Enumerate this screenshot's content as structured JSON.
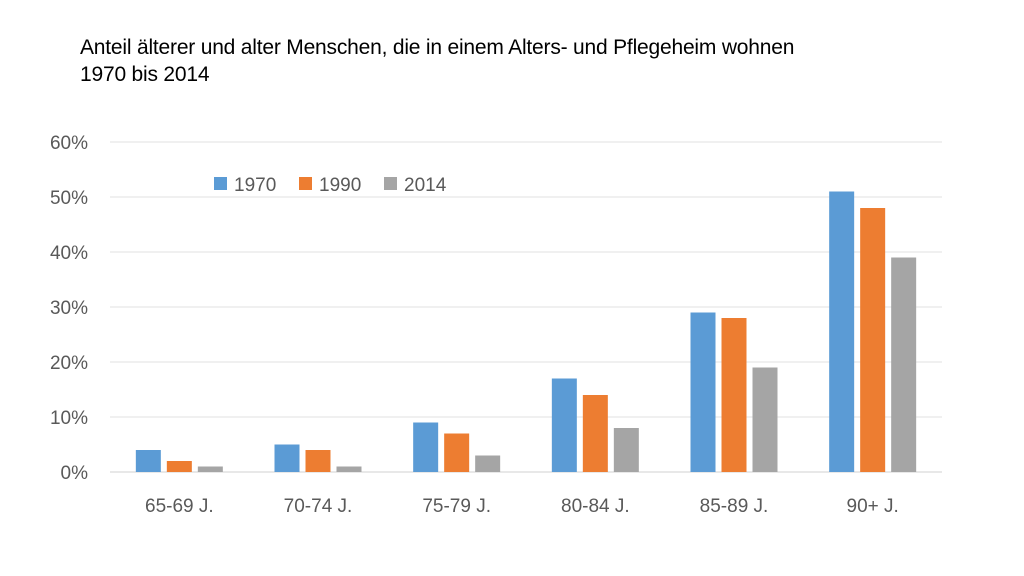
{
  "chart_data": {
    "type": "bar",
    "title_line1": "Anteil älterer und alter Menschen, die in einem Alters- und Pflegeheim wohnen",
    "title_line2": "1970 bis 2014",
    "categories": [
      "65-69 J.",
      "70-74 J.",
      "75-79 J.",
      "80-84 J.",
      "85-89 J.",
      "90+ J."
    ],
    "series": [
      {
        "name": "1970",
        "color": "#5B9BD5",
        "values": [
          4,
          5,
          9,
          17,
          29,
          51
        ]
      },
      {
        "name": "1990",
        "color": "#ED7D31",
        "values": [
          2,
          4,
          7,
          14,
          28,
          48
        ]
      },
      {
        "name": "2014",
        "color": "#A5A5A5",
        "values": [
          1,
          1,
          3,
          8,
          19,
          39
        ]
      }
    ],
    "ylim": [
      0,
      60
    ],
    "yticks": [
      0,
      10,
      20,
      30,
      40,
      50,
      60
    ],
    "ytick_labels": [
      "0%",
      "10%",
      "20%",
      "30%",
      "40%",
      "50%",
      "60%"
    ],
    "grid": true,
    "legend_position": "top-left"
  }
}
